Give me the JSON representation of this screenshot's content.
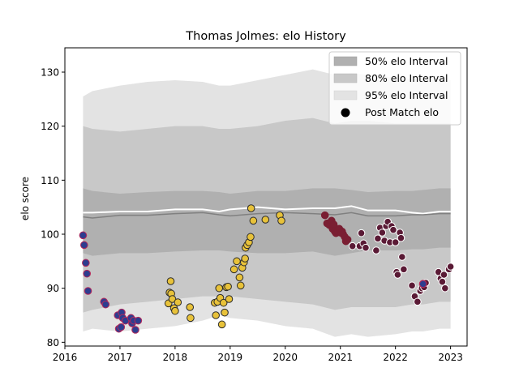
{
  "chart_data": {
    "type": "scatter",
    "title": "Thomas Jolmes: elo History",
    "xlabel": "",
    "ylabel": "elo score",
    "xlim": [
      2016.0,
      2023.3
    ],
    "ylim": [
      79.3,
      134.5
    ],
    "x_ticks": [
      2016,
      2017,
      2018,
      2019,
      2020,
      2021,
      2022,
      2023
    ],
    "y_ticks": [
      80,
      90,
      100,
      110,
      120,
      130
    ],
    "grid": false,
    "legend_position": "top-right",
    "legend": [
      {
        "label": "50% elo Interval",
        "swatch": "#b0b0b0",
        "kind": "patch"
      },
      {
        "label": "80% elo Interval",
        "swatch": "#c8c8c8",
        "kind": "patch"
      },
      {
        "label": "95% elo Interval",
        "swatch": "#e3e3e3",
        "kind": "patch"
      },
      {
        "label": "Post Match elo",
        "swatch": "#000000",
        "kind": "marker"
      }
    ],
    "colors": {
      "band50": "#b0b0b0",
      "band80": "#c8c8c8",
      "band95": "#e3e3e3",
      "mean_line": "#808080",
      "upper_line": "#ffffff",
      "blue_fill": "#2e3d8f",
      "blue_edge": "#b5285a",
      "yellow_fill": "#e8c23a",
      "yellow_edge": "#2a2a2a",
      "maroon_fill": "#7a1f33",
      "maroon_edge": "#7a1f33",
      "plum_fill": "#5a1a35",
      "plum_edge": "#ffffff"
    },
    "bands": {
      "x": [
        2016.33,
        2016.5,
        2017.0,
        2017.5,
        2018.0,
        2018.5,
        2018.8,
        2019.0,
        2019.5,
        2020.0,
        2020.5,
        2020.9,
        2021.2,
        2021.5,
        2022.0,
        2022.3,
        2022.5,
        2022.8,
        2023.0
      ],
      "band95_hi": [
        125.5,
        126.5,
        127.5,
        128.2,
        128.5,
        128.2,
        127.5,
        127.5,
        128.5,
        129.5,
        130.5,
        129.5,
        129.8,
        129.5,
        129.0,
        128.8,
        128.8,
        128.5,
        128.5
      ],
      "band95_lo": [
        82.0,
        82.5,
        82.0,
        82.5,
        83.0,
        84.0,
        85.0,
        84.5,
        84.0,
        83.0,
        82.5,
        81.0,
        81.5,
        81.0,
        81.5,
        82.0,
        82.0,
        82.5,
        82.5
      ],
      "band80_hi": [
        120.0,
        119.5,
        119.0,
        119.5,
        120.0,
        120.0,
        119.5,
        119.5,
        120.0,
        121.0,
        121.5,
        120.5,
        121.0,
        121.0,
        120.5,
        120.5,
        120.5,
        120.5,
        120.5
      ],
      "band80_lo": [
        85.5,
        86.0,
        87.0,
        87.5,
        88.0,
        88.5,
        88.5,
        88.5,
        88.0,
        87.5,
        87.0,
        86.0,
        86.5,
        86.5,
        86.5,
        87.0,
        87.0,
        87.5,
        87.5
      ],
      "band50_hi": [
        108.5,
        108.0,
        107.5,
        107.8,
        108.0,
        108.0,
        107.8,
        107.5,
        108.0,
        108.0,
        108.5,
        108.5,
        108.2,
        107.8,
        108.0,
        108.0,
        108.2,
        108.5,
        108.5
      ],
      "band50_lo": [
        96.5,
        96.0,
        96.5,
        96.5,
        96.8,
        97.0,
        97.0,
        96.8,
        96.5,
        96.5,
        96.8,
        96.0,
        96.5,
        97.0,
        97.0,
        97.2,
        97.2,
        97.5,
        97.5
      ],
      "mean": [
        103.2,
        103.0,
        103.5,
        103.5,
        103.8,
        104.0,
        103.6,
        103.4,
        103.8,
        104.0,
        103.8,
        103.6,
        104.0,
        103.4,
        103.4,
        103.6,
        103.6,
        103.8,
        103.8
      ],
      "upper": [
        104.0,
        104.0,
        104.2,
        104.2,
        104.6,
        104.6,
        104.2,
        104.6,
        105.0,
        104.6,
        104.8,
        104.8,
        105.2,
        104.4,
        104.4,
        104.0,
        103.8,
        104.2,
        104.2
      ]
    },
    "series": [
      {
        "group": "2016-2017",
        "fill": "#2e3d8f",
        "edge": "#b5285a",
        "x": [
          2016.33,
          2016.35,
          2016.38,
          2016.4,
          2016.42,
          2016.71,
          2016.74,
          2016.96,
          2016.98,
          2017.02,
          2017.03,
          2017.05,
          2017.1,
          2017.2,
          2017.22,
          2017.25,
          2017.28,
          2017.33
        ],
        "y": [
          99.8,
          98.0,
          94.7,
          92.7,
          89.5,
          87.5,
          87.0,
          85.0,
          82.5,
          82.8,
          85.5,
          84.5,
          84.0,
          84.5,
          83.5,
          84.0,
          82.3,
          84.0
        ]
      },
      {
        "group": "2017-2019",
        "fill": "#e8c23a",
        "edge": "#2a2a2a",
        "x": [
          2017.88,
          2017.9,
          2017.92,
          2017.93,
          2017.95,
          2017.98,
          2018.0,
          2018.05,
          2018.27,
          2018.28,
          2018.72,
          2018.74,
          2018.77,
          2018.8,
          2018.82,
          2018.85,
          2018.88,
          2018.9,
          2018.93,
          2018.96,
          2018.98,
          2019.07,
          2019.12,
          2019.17,
          2019.19,
          2019.22,
          2019.25,
          2019.27,
          2019.28,
          2019.31,
          2019.34,
          2019.37,
          2019.42,
          2019.64,
          2019.9,
          2019.93
        ],
        "y": [
          87.2,
          89.2,
          91.3,
          89.0,
          88.0,
          86.3,
          85.8,
          87.4,
          86.5,
          84.5,
          87.3,
          85.0,
          87.5,
          90.0,
          88.2,
          83.3,
          87.3,
          85.5,
          90.2,
          90.3,
          88.0,
          93.5,
          95.0,
          92.0,
          90.5,
          93.8,
          94.8,
          95.5,
          97.5,
          98.0,
          98.5,
          99.5,
          102.5,
          102.7,
          103.5,
          102.5
        ]
      },
      {
        "group": "2019-2020",
        "fill": "#e8c23a",
        "edge": "#2a2a2a",
        "x": [
          2019.38
        ],
        "y": [
          104.8
        ]
      },
      {
        "group": "2020-2021",
        "fill": "#7a1f33",
        "edge": "#7a1f33",
        "x": [
          2020.72,
          2020.76,
          2020.8,
          2020.84,
          2020.86,
          2020.88,
          2020.9,
          2020.92,
          2020.95,
          2020.98,
          2021.0,
          2021.03,
          2021.05,
          2021.08,
          2021.1,
          2021.13
        ],
        "y": [
          103.5,
          102.0,
          101.7,
          102.5,
          101.0,
          101.8,
          100.5,
          100.2,
          100.5,
          101.0,
          100.3,
          100.5,
          100.0,
          99.5,
          98.7,
          99.0
        ]
      },
      {
        "group": "2021-2023",
        "fill": "#5a1a35",
        "edge": "#ffffff",
        "x": [
          2021.22,
          2021.35,
          2021.38,
          2021.42,
          2021.46,
          2021.65,
          2021.68,
          2021.72,
          2021.76,
          2021.8,
          2021.83,
          2021.86,
          2021.9,
          2021.93,
          2021.96,
          2022.0,
          2022.02,
          2022.04,
          2022.08,
          2022.1,
          2022.12,
          2022.15,
          2022.3,
          2022.35,
          2022.4,
          2022.45,
          2022.48,
          2022.52,
          2022.55,
          2022.78,
          2022.82,
          2022.85,
          2022.88,
          2022.9,
          2022.97,
          2023.0
        ],
        "y": [
          97.8,
          97.8,
          100.2,
          98.3,
          97.5,
          97.0,
          99.2,
          101.2,
          100.3,
          98.8,
          101.5,
          102.3,
          98.5,
          101.5,
          100.8,
          98.5,
          93.0,
          92.5,
          100.3,
          99.3,
          95.8,
          93.5,
          90.5,
          88.5,
          87.5,
          89.5,
          90.0,
          90.2,
          91.0,
          93.0,
          91.8,
          91.2,
          92.5,
          90.0,
          93.5,
          94.0
        ]
      }
    ],
    "highlighted": [
      {
        "x": 2022.5,
        "y": 90.8,
        "fill": "#2e3d8f",
        "edge": "#b5285a"
      }
    ]
  }
}
